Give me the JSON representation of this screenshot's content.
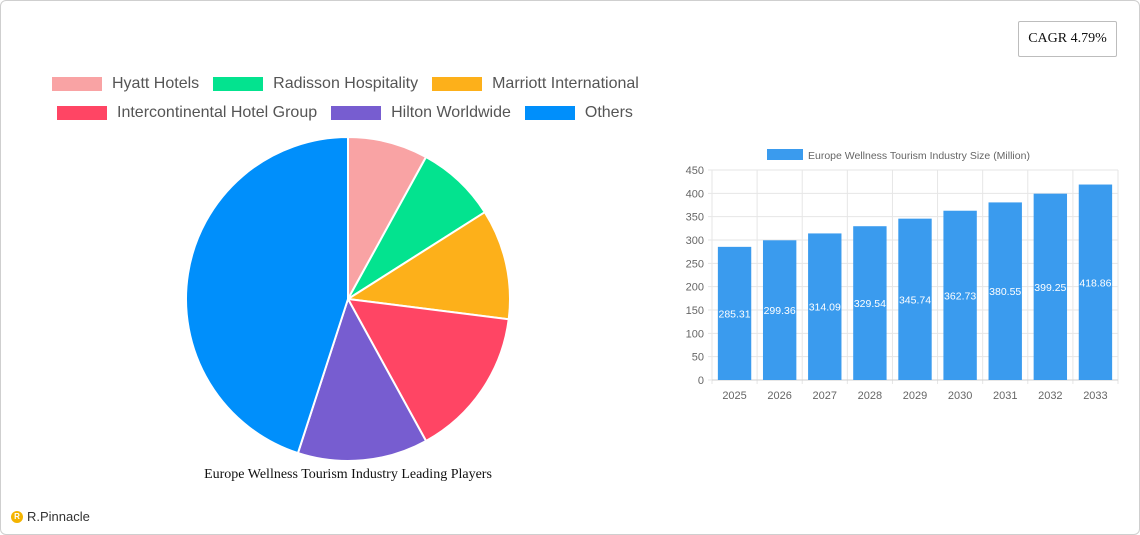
{
  "cagr": {
    "label": "CAGR 4.79%"
  },
  "brand": {
    "name": "R.Pinnacle",
    "mark": "R"
  },
  "chart_data": [
    {
      "type": "pie",
      "title": "Europe Wellness Tourism Industry Leading Players",
      "legend_position": "top",
      "series": [
        {
          "name": "Hyatt Hotels",
          "value": 8,
          "color": "#F9A3A4"
        },
        {
          "name": "Radisson Hospitality",
          "value": 8,
          "color": "#03E38F"
        },
        {
          "name": "Marriott International",
          "value": 11,
          "color": "#FDB01A"
        },
        {
          "name": "Intercontinental Hotel Group",
          "value": 15,
          "color": "#FF4564"
        },
        {
          "name": "Hilton Worldwide",
          "value": 13,
          "color": "#775DD0"
        },
        {
          "name": "Others",
          "value": 45,
          "color": "#008FFB"
        }
      ]
    },
    {
      "type": "bar",
      "legend": "Europe Wellness Tourism Industry Size (Million)",
      "legend_position": "top",
      "categories": [
        "2025",
        "2026",
        "2027",
        "2028",
        "2029",
        "2030",
        "2031",
        "2032",
        "2033"
      ],
      "values": [
        285.31,
        299.36,
        314.09,
        329.54,
        345.74,
        362.73,
        380.55,
        399.25,
        418.86
      ],
      "value_labels": [
        "285.31",
        "299.36",
        "314.09",
        "329.54",
        "345.74",
        "362.73",
        "380.55",
        "399.25",
        "418.86"
      ],
      "yticks": [
        "0",
        "50",
        "100",
        "150",
        "200",
        "250",
        "300",
        "350",
        "400",
        "450"
      ],
      "ylim": [
        0,
        450
      ],
      "grid": true,
      "color": "#3A9BEE"
    }
  ]
}
